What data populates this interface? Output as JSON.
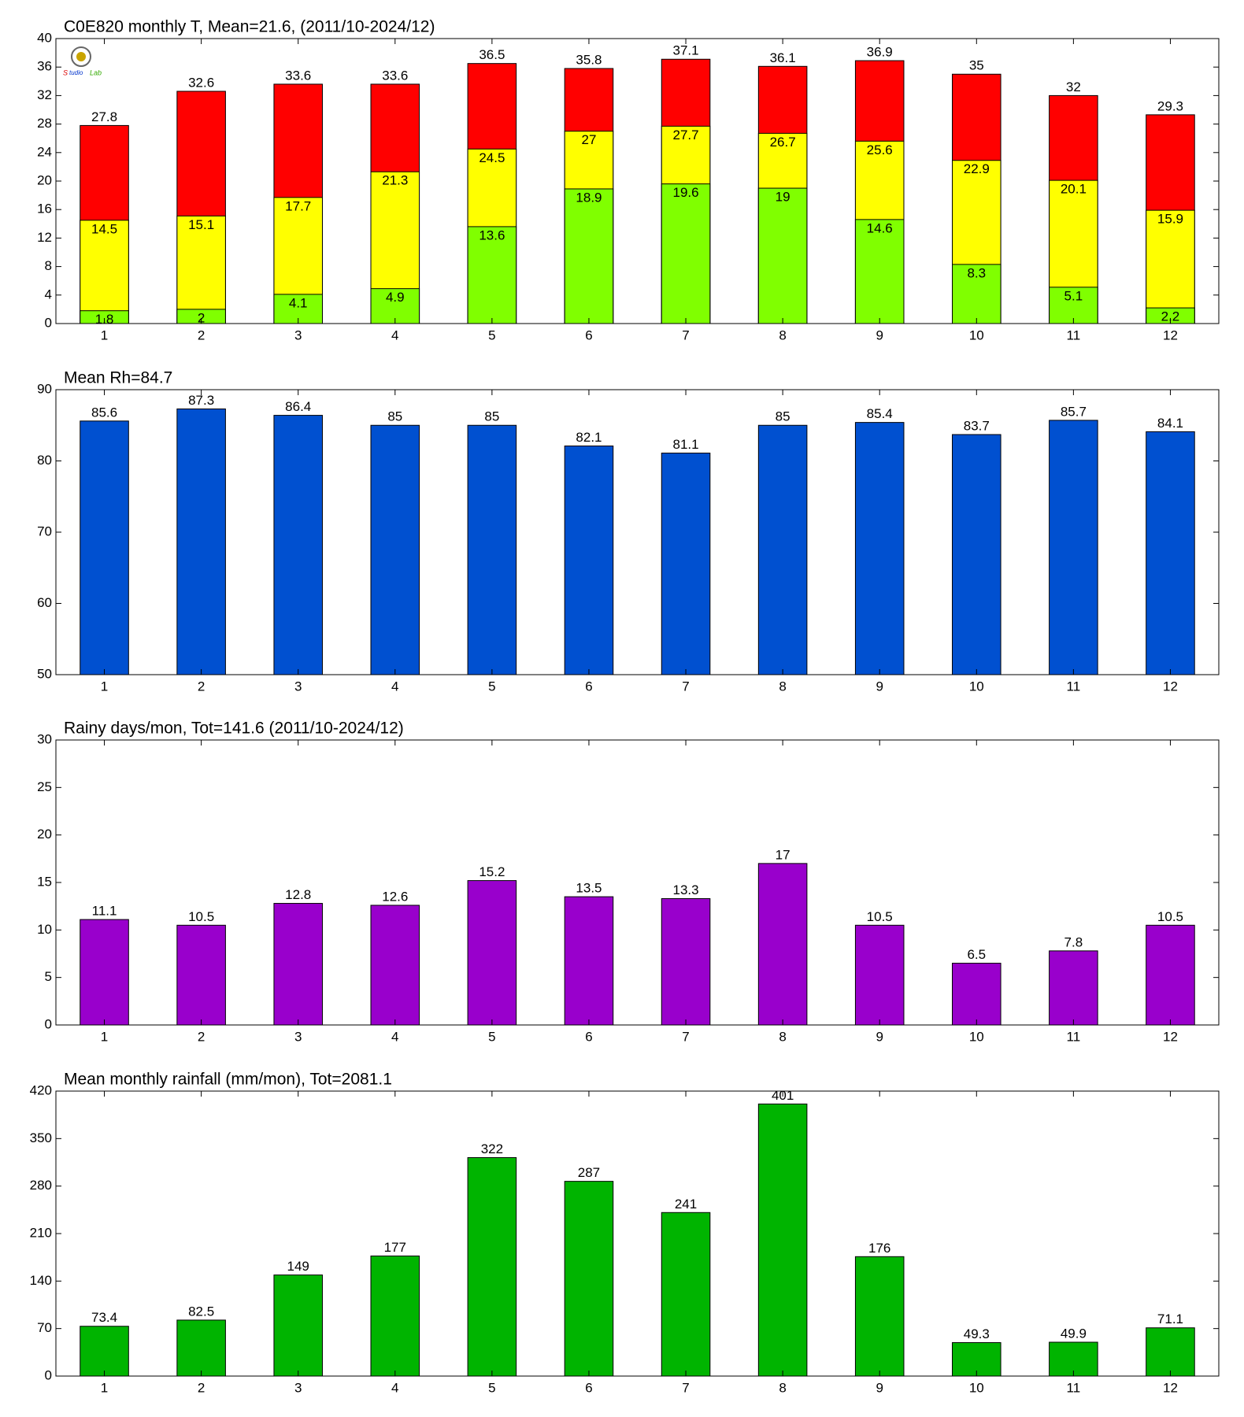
{
  "chart_data": [
    {
      "type": "bar",
      "title": "C0E820 monthly T, Mean=21.6, (2011/10-2024/12)",
      "categories": [
        "1",
        "2",
        "3",
        "4",
        "5",
        "6",
        "7",
        "8",
        "9",
        "10",
        "11",
        "12"
      ],
      "series": [
        {
          "color": "#ff0000",
          "values": [
            27.8,
            32.6,
            33.6,
            33.6,
            36.5,
            35.8,
            37.1,
            36.1,
            36.9,
            35,
            32,
            29.3
          ]
        },
        {
          "color": "#ffff00",
          "values": [
            14.5,
            15.1,
            17.7,
            21.3,
            24.5,
            27,
            27.7,
            26.7,
            25.6,
            22.9,
            20.1,
            15.9
          ]
        },
        {
          "color": "#80ff00",
          "values": [
            1.8,
            2,
            4.1,
            4.9,
            13.6,
            18.9,
            19.6,
            19,
            14.6,
            8.3,
            5.1,
            2.2
          ]
        }
      ],
      "ylim": [
        0,
        40
      ],
      "yticks": [
        0,
        4,
        8,
        12,
        16,
        20,
        24,
        28,
        32,
        36,
        40
      ]
    },
    {
      "type": "bar",
      "title": "Mean Rh=84.7",
      "categories": [
        "1",
        "2",
        "3",
        "4",
        "5",
        "6",
        "7",
        "8",
        "9",
        "10",
        "11",
        "12"
      ],
      "values": [
        85.6,
        87.3,
        86.4,
        85,
        85,
        82.1,
        81.1,
        85,
        85.4,
        83.7,
        85.7,
        84.1
      ],
      "color": "#0050d0",
      "ylim": [
        50,
        90
      ],
      "yticks": [
        50,
        60,
        70,
        80,
        90
      ]
    },
    {
      "type": "bar",
      "title": "Rainy days/mon, Tot=141.6 (2011/10-2024/12)",
      "categories": [
        "1",
        "2",
        "3",
        "4",
        "5",
        "6",
        "7",
        "8",
        "9",
        "10",
        "11",
        "12"
      ],
      "values": [
        11.1,
        10.5,
        12.8,
        12.6,
        15.2,
        13.5,
        13.3,
        17,
        10.5,
        6.5,
        7.8,
        10.5
      ],
      "color": "#9900cc",
      "ylim": [
        0,
        30
      ],
      "yticks": [
        0,
        5,
        10,
        15,
        20,
        25,
        30
      ]
    },
    {
      "type": "bar",
      "title": "Mean monthly rainfall (mm/mon), Tot=2081.1",
      "categories": [
        "1",
        "2",
        "3",
        "4",
        "5",
        "6",
        "7",
        "8",
        "9",
        "10",
        "11",
        "12"
      ],
      "values": [
        73.4,
        82.5,
        149,
        177,
        322,
        287,
        241,
        401,
        176,
        49.3,
        49.9,
        71.1
      ],
      "color": "#00b400",
      "ylim": [
        0,
        420
      ],
      "yticks": [
        0,
        70,
        140,
        210,
        280,
        350,
        420
      ]
    }
  ]
}
